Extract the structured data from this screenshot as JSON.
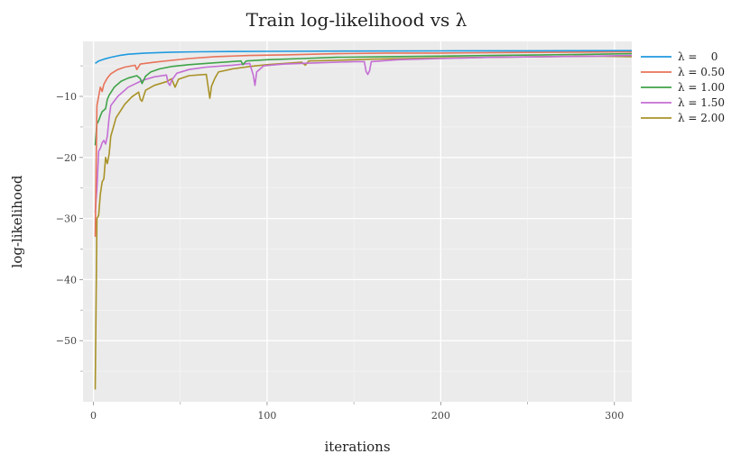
{
  "chart_data": {
    "type": "line",
    "title": "Train log-likelihood vs λ",
    "xlabel": "iterations",
    "ylabel": "log-likelihood",
    "xlim": [
      -6,
      310
    ],
    "ylim": [
      -60,
      -1
    ],
    "xticks": [
      0,
      100,
      200,
      300
    ],
    "xtick_labels": [
      "0",
      "100",
      "200",
      "300"
    ],
    "xminor_ticks": [
      50,
      150,
      250
    ],
    "yticks": [
      -50,
      -40,
      -30,
      -20,
      -10
    ],
    "ytick_labels": [
      "−50",
      "−40",
      "−30",
      "−20",
      "−10"
    ],
    "yminor_ticks": [
      -55,
      -45,
      -35,
      -25,
      -15,
      -5
    ],
    "grid": true,
    "legend_position": "outside-right-top",
    "background": "#ebebeb",
    "series": [
      {
        "name": "λ =    0",
        "color": "#1f9ae0",
        "points": [
          [
            1,
            -4.6
          ],
          [
            3,
            -4.2
          ],
          [
            6,
            -3.9
          ],
          [
            10,
            -3.6
          ],
          [
            15,
            -3.3
          ],
          [
            20,
            -3.1
          ],
          [
            30,
            -2.9
          ],
          [
            45,
            -2.75
          ],
          [
            60,
            -2.7
          ],
          [
            80,
            -2.65
          ],
          [
            100,
            -2.62
          ],
          [
            150,
            -2.58
          ],
          [
            200,
            -2.55
          ],
          [
            250,
            -2.53
          ],
          [
            310,
            -2.5
          ]
        ]
      },
      {
        "name": "λ = 0.50",
        "color": "#e8735a",
        "points": [
          [
            1,
            -33
          ],
          [
            2,
            -11.5
          ],
          [
            3,
            -10
          ],
          [
            4,
            -8.5
          ],
          [
            5,
            -9.2
          ],
          [
            6,
            -8
          ],
          [
            8,
            -7
          ],
          [
            10,
            -6.3
          ],
          [
            14,
            -5.6
          ],
          [
            18,
            -5.2
          ],
          [
            22,
            -5
          ],
          [
            24,
            -4.9
          ],
          [
            25,
            -5.6
          ],
          [
            27,
            -4.7
          ],
          [
            35,
            -4.4
          ],
          [
            45,
            -4.1
          ],
          [
            55,
            -3.8
          ],
          [
            70,
            -3.5
          ],
          [
            90,
            -3.3
          ],
          [
            110,
            -3.2
          ],
          [
            140,
            -3
          ],
          [
            170,
            -2.9
          ],
          [
            200,
            -2.9
          ],
          [
            250,
            -2.8
          ],
          [
            310,
            -2.7
          ]
        ]
      },
      {
        "name": "λ = 1.00",
        "color": "#3fa348",
        "points": [
          [
            1,
            -18
          ],
          [
            2,
            -14.5
          ],
          [
            3,
            -14
          ],
          [
            4,
            -13.2
          ],
          [
            5,
            -12.5
          ],
          [
            7,
            -12
          ],
          [
            8,
            -10.5
          ],
          [
            9,
            -9.8
          ],
          [
            12,
            -8.5
          ],
          [
            16,
            -7.5
          ],
          [
            20,
            -7
          ],
          [
            25,
            -6.6
          ],
          [
            27,
            -7.1
          ],
          [
            28,
            -7.9
          ],
          [
            30,
            -6.7
          ],
          [
            33,
            -6
          ],
          [
            38,
            -5.5
          ],
          [
            45,
            -5.1
          ],
          [
            55,
            -4.8
          ],
          [
            70,
            -4.5
          ],
          [
            85,
            -4.2
          ],
          [
            86,
            -4.8
          ],
          [
            88,
            -4.2
          ],
          [
            100,
            -4
          ],
          [
            120,
            -3.8
          ],
          [
            140,
            -3.6
          ],
          [
            170,
            -3.5
          ],
          [
            200,
            -3.4
          ],
          [
            230,
            -3.3
          ],
          [
            260,
            -3.2
          ],
          [
            290,
            -3.1
          ],
          [
            310,
            -3
          ]
        ]
      },
      {
        "name": "λ = 1.50",
        "color": "#c46ed4",
        "points": [
          [
            1,
            -29
          ],
          [
            2,
            -25
          ],
          [
            3,
            -19
          ],
          [
            4,
            -18.5
          ],
          [
            5,
            -17.6
          ],
          [
            6,
            -17.2
          ],
          [
            7,
            -17.8
          ],
          [
            8,
            -16.5
          ],
          [
            9,
            -13.5
          ],
          [
            10,
            -11.5
          ],
          [
            14,
            -10
          ],
          [
            20,
            -8.5
          ],
          [
            28,
            -7.4
          ],
          [
            35,
            -6.8
          ],
          [
            42,
            -6.5
          ],
          [
            43,
            -7.8
          ],
          [
            44,
            -8.2
          ],
          [
            45,
            -7.4
          ],
          [
            48,
            -6.2
          ],
          [
            55,
            -5.6
          ],
          [
            65,
            -5.2
          ],
          [
            80,
            -4.9
          ],
          [
            90,
            -4.6
          ],
          [
            92,
            -6.5
          ],
          [
            93,
            -8.2
          ],
          [
            94,
            -6
          ],
          [
            98,
            -5
          ],
          [
            110,
            -4.7
          ],
          [
            130,
            -4.5
          ],
          [
            150,
            -4.3
          ],
          [
            156,
            -4.3
          ],
          [
            157,
            -5.9
          ],
          [
            158,
            -6.4
          ],
          [
            159,
            -5.8
          ],
          [
            160,
            -4.3
          ],
          [
            175,
            -4
          ],
          [
            200,
            -3.8
          ],
          [
            230,
            -3.6
          ],
          [
            260,
            -3.5
          ],
          [
            290,
            -3.4
          ],
          [
            310,
            -3.3
          ]
        ]
      },
      {
        "name": "λ = 2.00",
        "color": "#a99228",
        "points": [
          [
            1,
            -58
          ],
          [
            2,
            -30
          ],
          [
            3,
            -29.5
          ],
          [
            4,
            -26
          ],
          [
            5,
            -24
          ],
          [
            6,
            -23.5
          ],
          [
            7,
            -20
          ],
          [
            8,
            -21
          ],
          [
            9,
            -19.5
          ],
          [
            10,
            -16.5
          ],
          [
            13,
            -13.5
          ],
          [
            18,
            -11.3
          ],
          [
            22,
            -10.1
          ],
          [
            26,
            -9.3
          ],
          [
            27,
            -10.5
          ],
          [
            28,
            -10.8
          ],
          [
            30,
            -9
          ],
          [
            35,
            -8.2
          ],
          [
            42,
            -7.6
          ],
          [
            45,
            -7.1
          ],
          [
            47,
            -8.5
          ],
          [
            49,
            -7.2
          ],
          [
            55,
            -6.6
          ],
          [
            65,
            -6.4
          ],
          [
            67,
            -10.3
          ],
          [
            68,
            -8.3
          ],
          [
            70,
            -7
          ],
          [
            72,
            -6
          ],
          [
            80,
            -5.5
          ],
          [
            90,
            -5.1
          ],
          [
            100,
            -4.8
          ],
          [
            110,
            -4.6
          ],
          [
            120,
            -4.4
          ],
          [
            122,
            -4.9
          ],
          [
            124,
            -4.2
          ],
          [
            140,
            -4.1
          ],
          [
            160,
            -3.9
          ],
          [
            180,
            -3.8
          ],
          [
            200,
            -3.7
          ],
          [
            230,
            -3.6
          ],
          [
            260,
            -3.5
          ],
          [
            290,
            -3.4
          ],
          [
            310,
            -3.5
          ]
        ]
      }
    ]
  }
}
